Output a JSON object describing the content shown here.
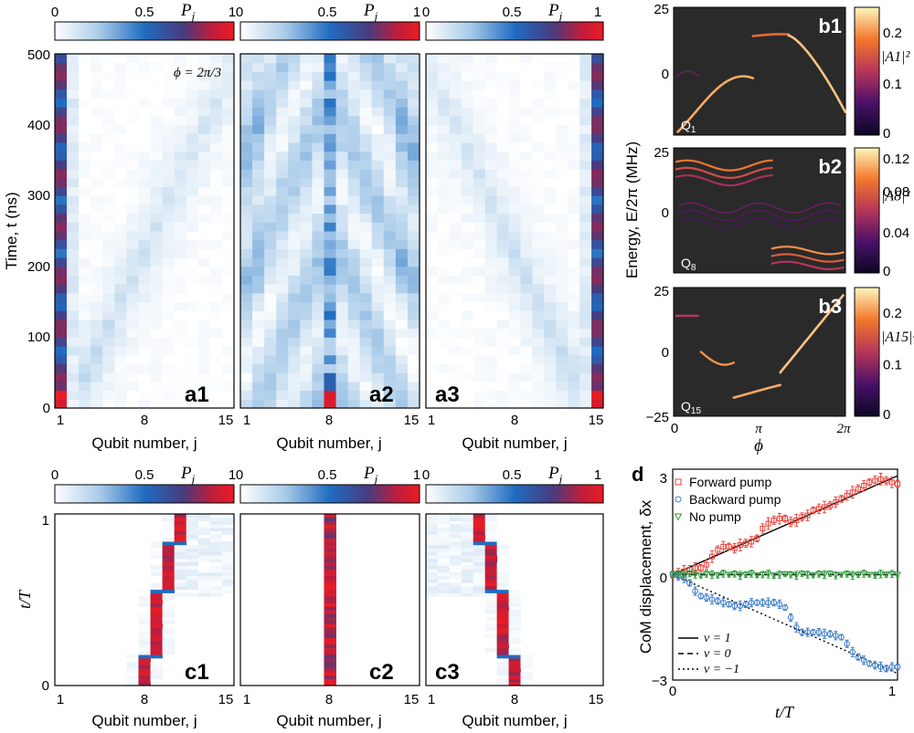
{
  "colorbar": {
    "tick_min": "0",
    "tick_mid": "0.5",
    "tick_max": "1",
    "label": "P",
    "label_sub": "j"
  },
  "heatmap_axes": {
    "ylabel_a": "Time, t (ns)",
    "ylabel_c": "t/T",
    "xlabel": "Qubit number, j",
    "xticks": [
      "1",
      "8",
      "15"
    ],
    "yticks_a": [
      "0",
      "100",
      "200",
      "300",
      "400",
      "500"
    ],
    "yticks_c": [
      "0",
      "1"
    ],
    "phi_annot": "ϕ = 2π/3"
  },
  "spectrum_axes": {
    "ylabel": "Energy, E/2π (MHz)",
    "xlabel": "ϕ",
    "xticks": [
      "0",
      "π",
      "2π"
    ],
    "yticks": [
      "25",
      "0",
      "−25"
    ]
  },
  "d_axes": {
    "ylabel": "CoM displacement, δx",
    "xlabel": "t/T",
    "xticks": [
      "0",
      "1"
    ],
    "yticks": [
      "3",
      "0",
      "−3"
    ],
    "legend": [
      "Forward pump",
      "Backward pump",
      "No pump"
    ],
    "nu_legend": [
      "ν = 1",
      "ν = 0",
      "ν = −1"
    ]
  },
  "colors": {
    "forward": "#e8423a",
    "backward": "#3d7cc9",
    "nopump": "#2e9a3a",
    "spectrum_bg": "#2a2a2a"
  },
  "chart_data": [
    {
      "id": "a1",
      "type": "heatmap",
      "label": "a1",
      "x": "qubit j (1-15)",
      "y": "time t (ns)",
      "ylim": [
        0,
        500
      ],
      "initial_qubit": 1,
      "note": "excitation stays localized at edge qubit 1"
    },
    {
      "id": "a2",
      "type": "heatmap",
      "label": "a2",
      "x": "qubit j (1-15)",
      "y": "time t (ns)",
      "ylim": [
        0,
        500
      ],
      "initial_qubit": 8,
      "note": "excitation spreads from bulk qubit 8"
    },
    {
      "id": "a3",
      "type": "heatmap",
      "label": "a3",
      "x": "qubit j (1-15)",
      "y": "time t (ns)",
      "ylim": [
        0,
        500
      ],
      "initial_qubit": 15,
      "note": "excitation stays localized at edge qubit 15"
    },
    {
      "id": "b1",
      "type": "heatmap",
      "label": "b1",
      "qubit_label": "Q",
      "qubit_sub": "1",
      "cbar_label": "|A1|²",
      "cbar_ticks": [
        "0.2",
        "0.1",
        "0"
      ],
      "ylim": [
        -25,
        25
      ],
      "xlim": [
        "0",
        "2π"
      ]
    },
    {
      "id": "b2",
      "type": "heatmap",
      "label": "b2",
      "qubit_label": "Q",
      "qubit_sub": "8",
      "cbar_label": "|A8|²",
      "cbar_ticks": [
        "0.12",
        "0.08",
        "0.04",
        "0"
      ],
      "ylim": [
        -25,
        25
      ],
      "xlim": [
        "0",
        "2π"
      ]
    },
    {
      "id": "b3",
      "type": "heatmap",
      "label": "b3",
      "qubit_label": "Q",
      "qubit_sub": "15",
      "cbar_label": "|A15|²",
      "cbar_ticks": [
        "0.2",
        "0.1",
        "0"
      ],
      "ylim": [
        -25,
        25
      ],
      "xlim": [
        "0",
        "2π"
      ]
    },
    {
      "id": "c1",
      "type": "heatmap",
      "label": "c1",
      "x": "qubit j",
      "y": "t/T",
      "ylim": [
        0,
        1
      ],
      "path": [
        [
          0,
          8
        ],
        [
          0.18,
          9
        ],
        [
          0.55,
          10
        ],
        [
          0.83,
          11
        ],
        [
          1,
          11
        ]
      ]
    },
    {
      "id": "c2",
      "type": "heatmap",
      "label": "c2",
      "x": "qubit j",
      "y": "t/T",
      "ylim": [
        0,
        1
      ],
      "path": [
        [
          0,
          8
        ],
        [
          1,
          8
        ]
      ]
    },
    {
      "id": "c3",
      "type": "heatmap",
      "label": "c3",
      "x": "qubit j",
      "y": "t/T",
      "ylim": [
        0,
        1
      ],
      "path": [
        [
          0,
          8
        ],
        [
          0.18,
          7
        ],
        [
          0.55,
          6
        ],
        [
          0.83,
          5
        ],
        [
          1,
          5
        ]
      ]
    },
    {
      "id": "d",
      "type": "scatter",
      "label": "d",
      "xlabel": "t/T",
      "ylabel": "CoM displacement, δx",
      "xlim": [
        0,
        1
      ],
      "ylim": [
        -3.2,
        3.2
      ],
      "x": [
        0,
        0.025,
        0.05,
        0.075,
        0.1,
        0.125,
        0.15,
        0.175,
        0.2,
        0.225,
        0.25,
        0.275,
        0.3,
        0.325,
        0.35,
        0.375,
        0.4,
        0.425,
        0.45,
        0.475,
        0.5,
        0.525,
        0.55,
        0.575,
        0.6,
        0.625,
        0.65,
        0.675,
        0.7,
        0.725,
        0.75,
        0.775,
        0.8,
        0.825,
        0.85,
        0.875,
        0.9,
        0.925,
        0.95,
        0.975,
        1.0
      ],
      "series": [
        {
          "name": "Forward pump",
          "marker": "square",
          "err": 0.15,
          "values": [
            0,
            0.05,
            0.1,
            0.15,
            0.2,
            0.2,
            0.3,
            0.55,
            0.75,
            0.85,
            0.85,
            0.8,
            0.9,
            0.95,
            1.0,
            1.1,
            1.4,
            1.55,
            1.65,
            1.7,
            1.7,
            1.6,
            1.65,
            1.75,
            1.8,
            1.95,
            2.0,
            2.05,
            2.1,
            2.2,
            2.3,
            2.4,
            2.5,
            2.6,
            2.7,
            2.8,
            2.85,
            2.9,
            2.85,
            2.8,
            2.75
          ]
        },
        {
          "name": "Backward pump",
          "marker": "circle",
          "err": 0.12,
          "values": [
            0,
            -0.05,
            -0.1,
            -0.25,
            -0.5,
            -0.65,
            -0.7,
            -0.75,
            -0.8,
            -0.85,
            -0.9,
            -0.95,
            -0.95,
            -0.9,
            -0.85,
            -0.85,
            -0.85,
            -0.85,
            -0.85,
            -0.9,
            -1.0,
            -1.3,
            -1.6,
            -1.75,
            -1.75,
            -1.75,
            -1.75,
            -1.8,
            -1.8,
            -1.85,
            -1.9,
            -2.1,
            -2.35,
            -2.5,
            -2.6,
            -2.7,
            -2.75,
            -2.8,
            -2.85,
            -2.8,
            -2.8
          ]
        },
        {
          "name": "No pump",
          "marker": "triangle-down",
          "err": 0.1,
          "values": [
            0,
            0.02,
            -0.02,
            0.03,
            0,
            -0.03,
            0.02,
            0,
            -0.02,
            0.03,
            0,
            0.02,
            -0.02,
            0,
            0.03,
            -0.02,
            0,
            0.02,
            -0.03,
            0,
            0.02,
            0,
            -0.02,
            0.03,
            0,
            -0.02,
            0.02,
            0,
            0.03,
            -0.02,
            0,
            0.02,
            -0.02,
            0,
            0.03,
            0,
            -0.02,
            0.02,
            0,
            0.02,
            0
          ]
        }
      ],
      "reference_lines": [
        {
          "name": "ν = 1",
          "style": "solid",
          "slope": 3
        },
        {
          "name": "ν = 0",
          "style": "dashed",
          "slope": 0
        },
        {
          "name": "ν = −1",
          "style": "dotted",
          "slope": -3
        }
      ]
    }
  ]
}
